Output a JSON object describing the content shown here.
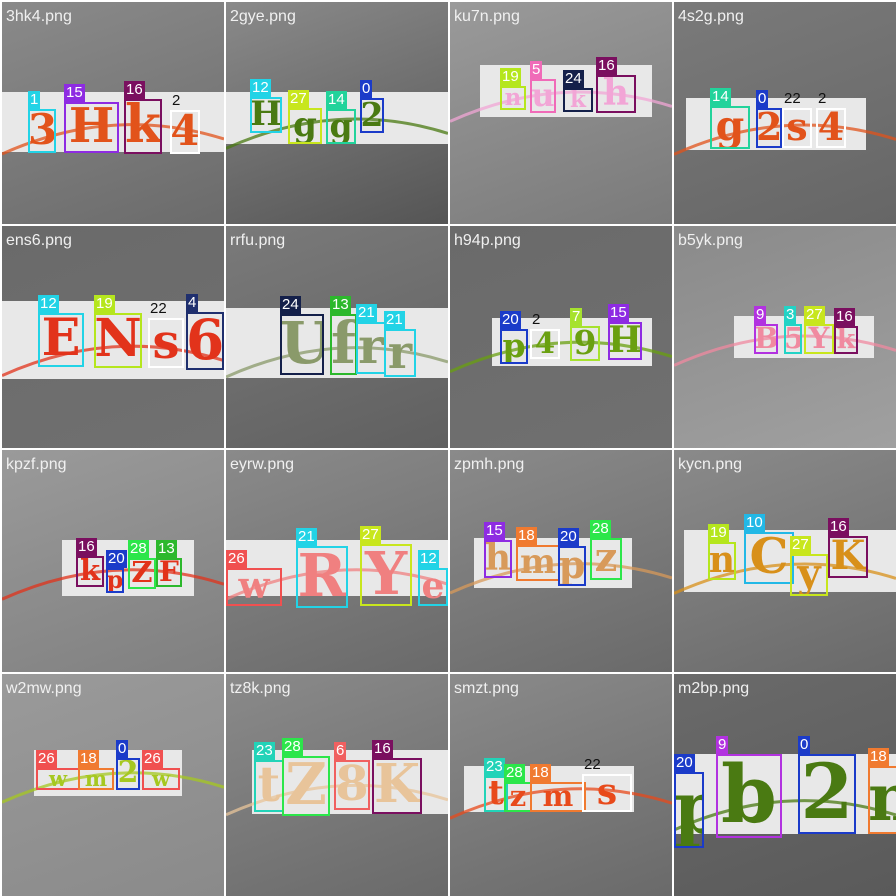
{
  "tiles": [
    {
      "name": "3hk4.png",
      "chars": [
        "3",
        "H",
        "k",
        "4"
      ],
      "ids": [
        "1",
        "15",
        "16",
        "2"
      ]
    },
    {
      "name": "2gye.png",
      "chars": [
        "H",
        "g",
        "g",
        "2"
      ],
      "ids": [
        "12",
        "27",
        "14",
        "0"
      ]
    },
    {
      "name": "ku7n.png",
      "chars": [
        "n",
        "u",
        "k",
        "h"
      ],
      "ids": [
        "19",
        "5",
        "24",
        "16"
      ]
    },
    {
      "name": "4s2g.png",
      "chars": [
        "g",
        "2",
        "s",
        "4"
      ],
      "ids": [
        "14",
        "0",
        "22",
        "2"
      ]
    },
    {
      "name": "ens6.png",
      "chars": [
        "E",
        "N",
        "s",
        "6"
      ],
      "ids": [
        "12",
        "19",
        "22",
        "4"
      ]
    },
    {
      "name": "rrfu.png",
      "chars": [
        "U",
        "f",
        "r",
        "r"
      ],
      "ids": [
        "24",
        "13",
        "21",
        "21"
      ]
    },
    {
      "name": "h94p.png",
      "chars": [
        "p",
        "4",
        "9",
        "H"
      ],
      "ids": [
        "20",
        "2",
        "7",
        "15"
      ]
    },
    {
      "name": "b5yk.png",
      "chars": [
        "B",
        "5",
        "Y",
        "k"
      ],
      "ids": [
        "9",
        "3",
        "27",
        "16"
      ]
    },
    {
      "name": "kpzf.png",
      "chars": [
        "k",
        "p",
        "Z",
        "F"
      ],
      "ids": [
        "16",
        "20",
        "28",
        "13"
      ]
    },
    {
      "name": "eyrw.png",
      "chars": [
        "w",
        "R",
        "Y",
        "e"
      ],
      "ids": [
        "26",
        "21",
        "27",
        "12"
      ]
    },
    {
      "name": "zpmh.png",
      "chars": [
        "h",
        "m",
        "p",
        "z"
      ],
      "ids": [
        "15",
        "18",
        "20",
        "28"
      ]
    },
    {
      "name": "kycn.png",
      "chars": [
        "n",
        "C",
        "y",
        "K"
      ],
      "ids": [
        "19",
        "10",
        "27",
        "16"
      ]
    },
    {
      "name": "w2mw.png",
      "chars": [
        "w",
        "m",
        "2",
        "w"
      ],
      "ids": [
        "26",
        "18",
        "0",
        "26"
      ]
    },
    {
      "name": "tz8k.png",
      "chars": [
        "t",
        "Z",
        "8",
        "K"
      ],
      "ids": [
        "23",
        "28",
        "6",
        "16"
      ]
    },
    {
      "name": "smzt.png",
      "chars": [
        "t",
        "z",
        "m",
        "s"
      ],
      "ids": [
        "23",
        "28",
        "18",
        "22"
      ]
    },
    {
      "name": "m2bp.png",
      "chars": [
        "p",
        "b",
        "2",
        "m"
      ],
      "ids": [
        "20",
        "9",
        "0",
        "18"
      ]
    }
  ],
  "class_colors": {
    "0": "#1b3bc9",
    "1": "#22d3e6",
    "2": "#ffffff",
    "3": "#22d3c6",
    "4": "#1f2f6e",
    "5": "#f06bb8",
    "6": "#f06060",
    "7": "#a6e22e",
    "9": "#b232e0",
    "10": "#22b8e6",
    "12": "#22d3e6",
    "13": "#2cb82c",
    "14": "#22d39b",
    "15": "#8e2be2",
    "16": "#7a0f5f",
    "18": "#f07a30",
    "19": "#b5e61d",
    "20": "#1b3bc9",
    "21": "#22d3e6",
    "22": "#ffffff",
    "23": "#22d3b8",
    "24": "#14204a",
    "26": "#f05050",
    "27": "#c8e61d",
    "28": "#2ce64a"
  }
}
